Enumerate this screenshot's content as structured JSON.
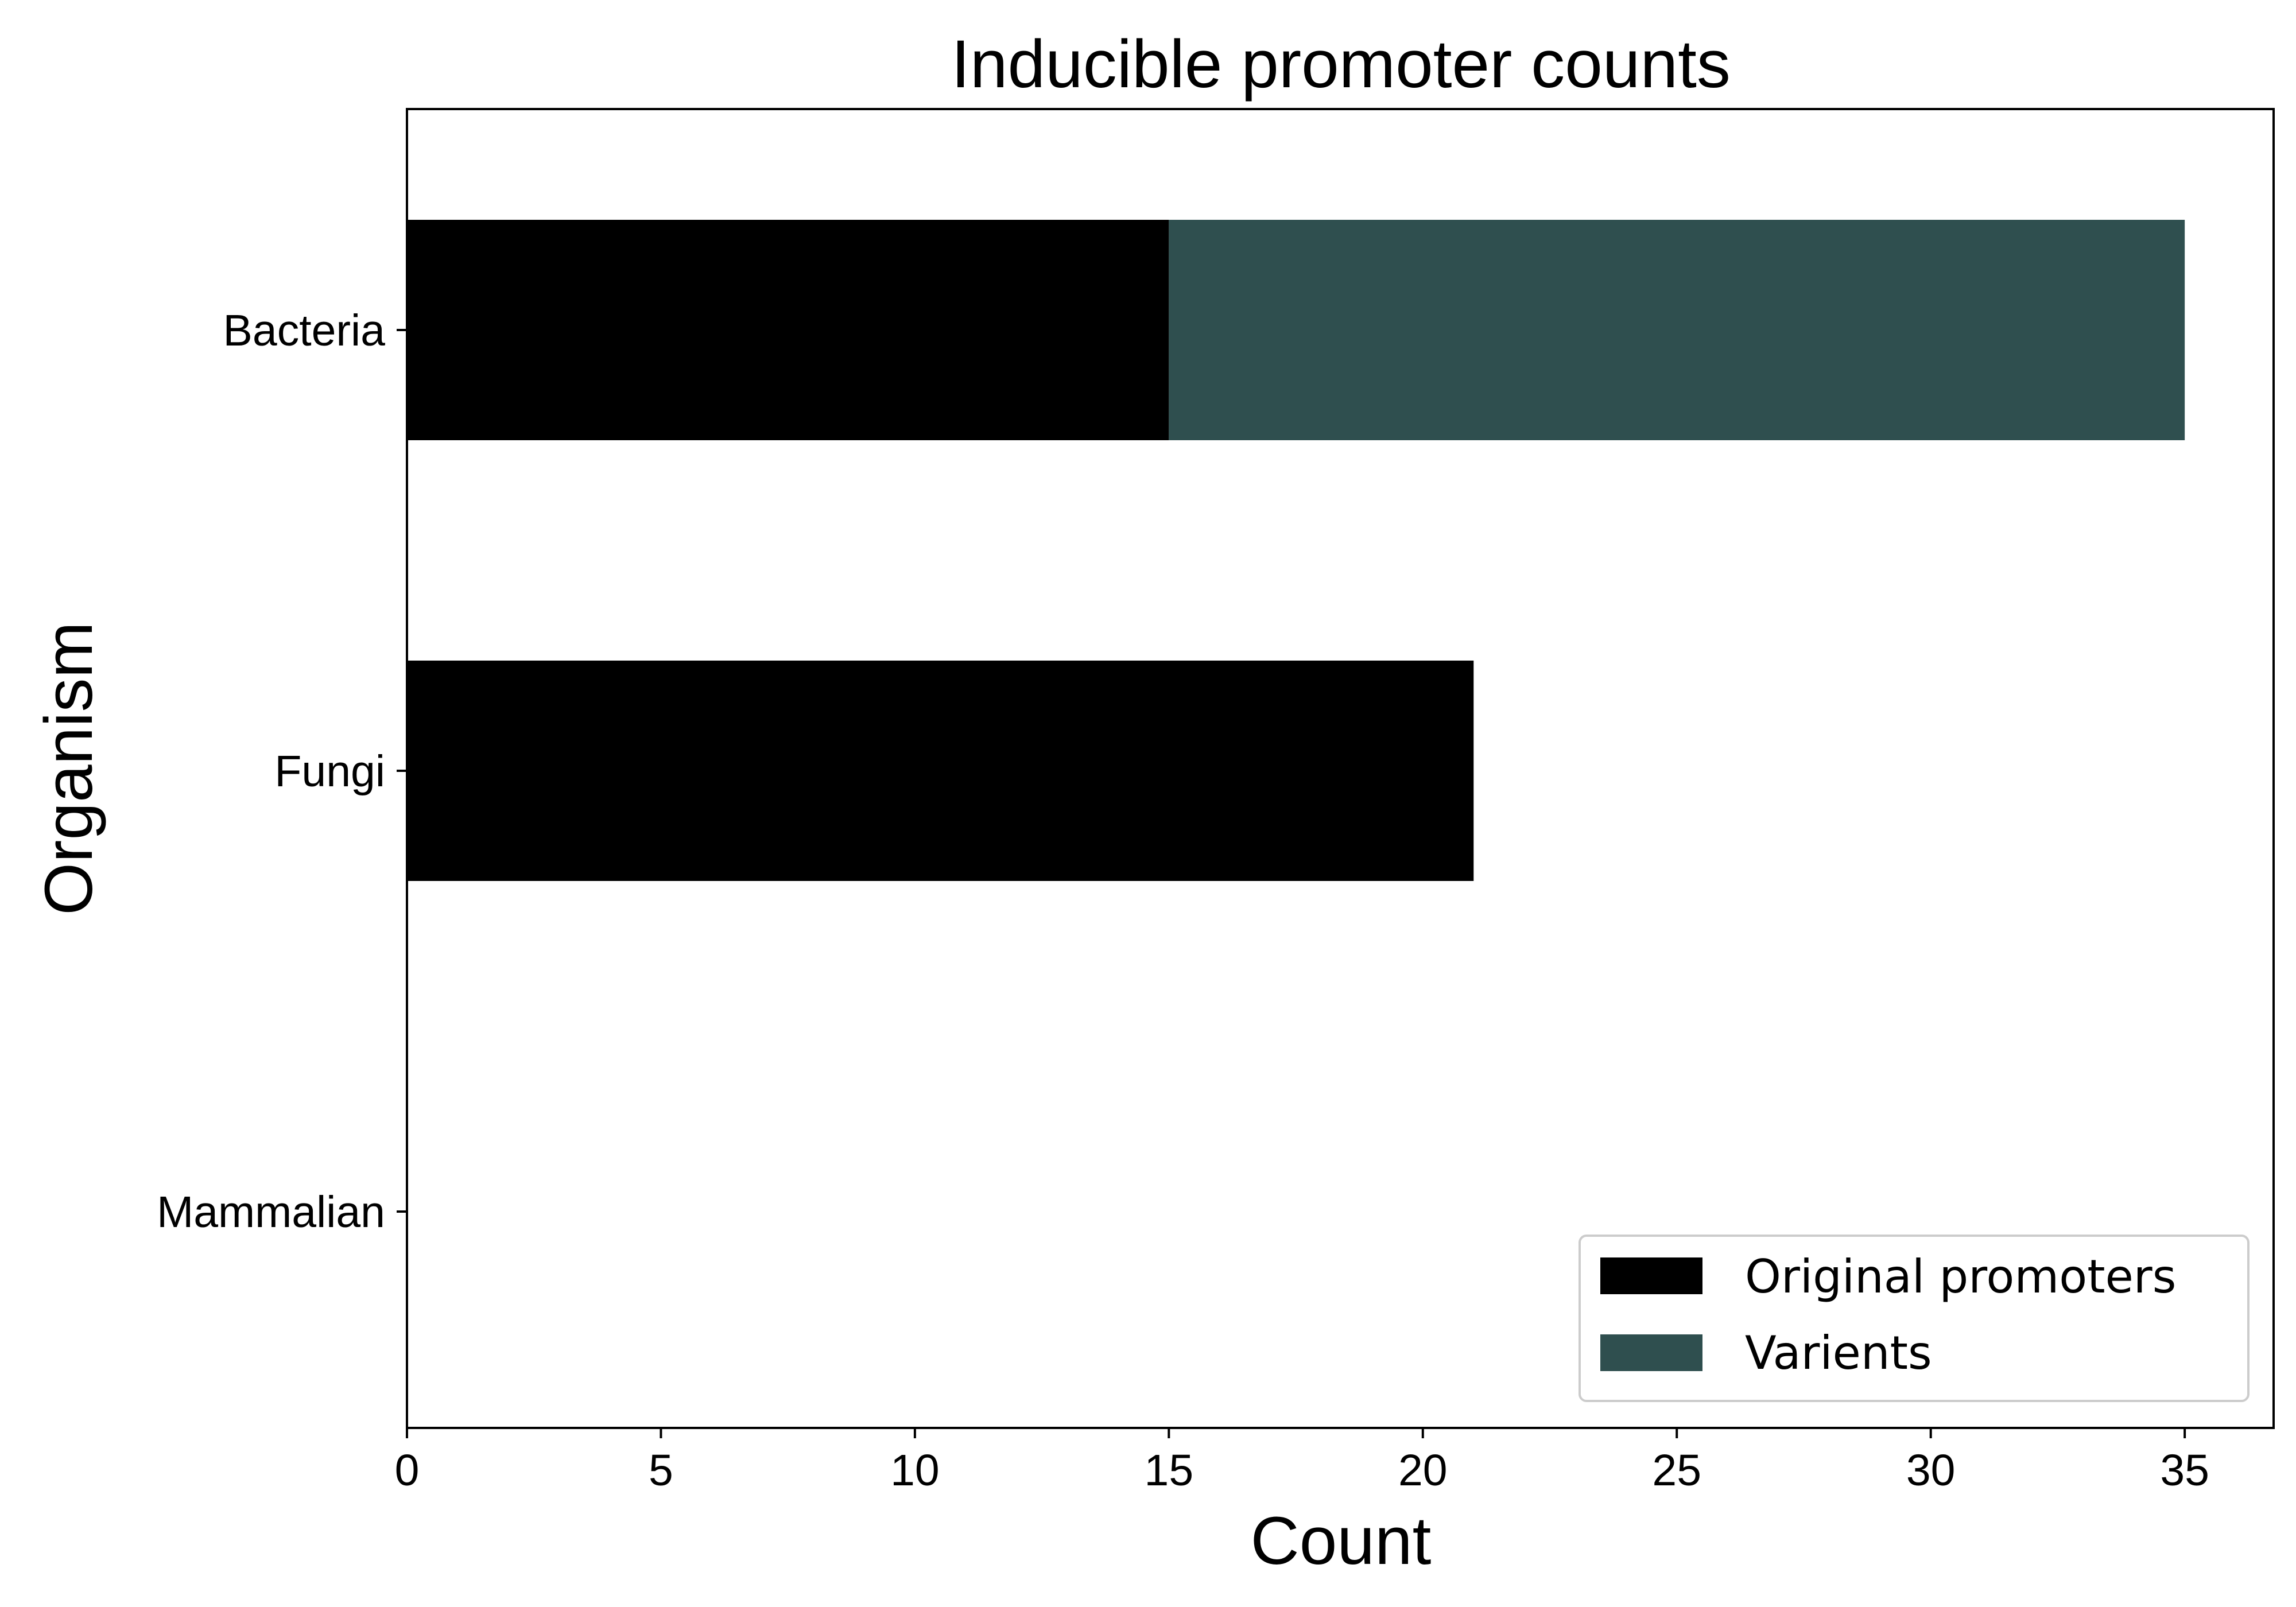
{
  "chart_data": {
    "type": "bar",
    "orientation": "horizontal",
    "stacked": true,
    "title": "Inducible promoter counts",
    "xlabel": "Count",
    "ylabel": "Organism",
    "categories": [
      "Bacteria",
      "Fungi",
      "Mammalian"
    ],
    "series": [
      {
        "name": "Original promoters",
        "values": [
          15,
          21,
          0
        ],
        "color": "#000000"
      },
      {
        "name": "Varients",
        "values": [
          20,
          0,
          0
        ],
        "color": "#2f4f4f"
      }
    ],
    "xlim": [
      0,
      36.75
    ],
    "xticks": [
      0,
      5,
      10,
      15,
      20,
      25,
      30,
      35
    ],
    "grid": false,
    "legend_position": "bottom-right"
  }
}
